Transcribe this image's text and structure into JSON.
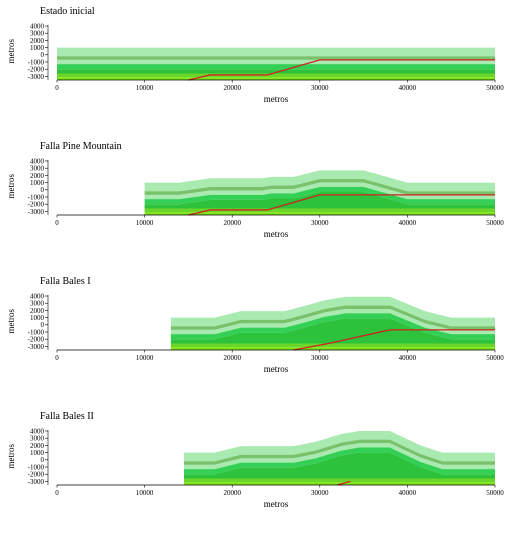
{
  "colors": {
    "layer_top": "#a9eab1",
    "layer_light_band": "#78c26c",
    "layer_mid": "#34cf55",
    "layer_mid2": "#2dc23c",
    "layer_bright": "#4be05d",
    "layer_deep": "#6bd629",
    "layer_base": "#7ee51a",
    "fault": "#d02020"
  },
  "panels": [
    {
      "title": "Estado inicial",
      "ylabel": "metros",
      "xlabel": "metros",
      "yticks": [
        "4000",
        "3000",
        "2000",
        "1000",
        "0",
        "-1000",
        "-2000",
        "-3000"
      ],
      "xticks": [
        "0",
        "10000",
        "20000",
        "30000",
        "40000",
        "50000"
      ],
      "section": {
        "start_m": 0,
        "uplift": []
      },
      "fault": [
        [
          15000,
          -3500
        ],
        [
          17500,
          -2800
        ],
        [
          24000,
          -2800
        ],
        [
          30000,
          -700
        ],
        [
          50000,
          -700
        ]
      ]
    },
    {
      "title": "Falla Pine Mountain",
      "ylabel": "metros",
      "xlabel": "metros",
      "yticks": [
        "4000",
        "3000",
        "2000",
        "1000",
        "0",
        "-1000",
        "-2000",
        "-3000"
      ],
      "xticks": [
        "0",
        "10000",
        "20000",
        "30000",
        "40000",
        "50000"
      ],
      "section": {
        "start_m": 10000,
        "uplift": [
          [
            10000,
            0
          ],
          [
            14000,
            0
          ],
          [
            17500,
            600
          ],
          [
            23500,
            600
          ],
          [
            24500,
            800
          ],
          [
            27000,
            800
          ],
          [
            30000,
            1700
          ],
          [
            35000,
            1700
          ],
          [
            40000,
            0
          ],
          [
            50000,
            0
          ]
        ]
      },
      "fault": [
        [
          15000,
          -3500
        ],
        [
          17500,
          -2800
        ],
        [
          24000,
          -2800
        ],
        [
          30000,
          -700
        ],
        [
          50000,
          -700
        ]
      ]
    },
    {
      "title": "Falla Bales I",
      "ylabel": "metros",
      "xlabel": "metros",
      "yticks": [
        "4000",
        "3000",
        "2000",
        "1000",
        "0",
        "-1000",
        "-2000",
        "-3000"
      ],
      "xticks": [
        "0",
        "10000",
        "20000",
        "30000",
        "40000",
        "50000"
      ],
      "section": {
        "start_m": 13000,
        "uplift": [
          [
            13000,
            0
          ],
          [
            18000,
            0
          ],
          [
            21000,
            900
          ],
          [
            26000,
            900
          ],
          [
            28500,
            1700
          ],
          [
            30500,
            2400
          ],
          [
            33000,
            2900
          ],
          [
            38000,
            2900
          ],
          [
            42000,
            900
          ],
          [
            45000,
            0
          ],
          [
            50000,
            0
          ]
        ]
      },
      "fault": [
        [
          27000,
          -3500
        ],
        [
          31000,
          -2600
        ],
        [
          38000,
          -700
        ],
        [
          50000,
          -700
        ]
      ]
    },
    {
      "title": "Falla Bales II",
      "ylabel": "metros",
      "xlabel": "metros",
      "yticks": [
        "4000",
        "3000",
        "2000",
        "1000",
        "0",
        "-1000",
        "-2000",
        "-3000"
      ],
      "xticks": [
        "0",
        "10000",
        "20000",
        "30000",
        "40000",
        "50000"
      ],
      "section": {
        "start_m": 14500,
        "uplift": [
          [
            14500,
            0
          ],
          [
            18000,
            0
          ],
          [
            21000,
            900
          ],
          [
            27000,
            900
          ],
          [
            29500,
            1500
          ],
          [
            32500,
            2600
          ],
          [
            34500,
            3000
          ],
          [
            38000,
            3000
          ],
          [
            41500,
            1000
          ],
          [
            44000,
            0
          ],
          [
            50000,
            0
          ]
        ]
      },
      "fault": [
        [
          32000,
          -3500
        ],
        [
          33500,
          -3000
        ]
      ]
    }
  ]
}
